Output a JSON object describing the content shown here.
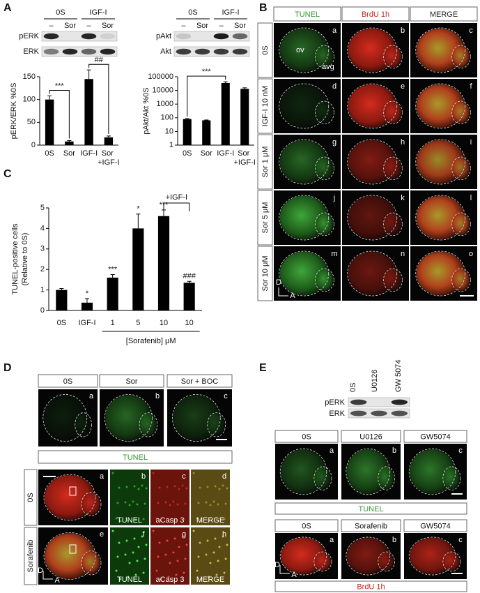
{
  "chart_data": [
    {
      "type": "bar",
      "ylabel": "pERK/ERK %0S",
      "categories": [
        "0S",
        "Sor",
        "IGF-I",
        "Sor +IGF-I"
      ],
      "series": [
        {
          "color": "#000000",
          "values": [
            100,
            8,
            145,
            17
          ],
          "errors": [
            8,
            2,
            20,
            3
          ]
        }
      ],
      "ylim": [
        0,
        150
      ],
      "yticks": [
        0,
        50,
        100,
        150
      ],
      "annotations": [
        "***",
        "##"
      ]
    },
    {
      "type": "bar",
      "ylabel": "pAkt/Akt %0S",
      "log": true,
      "categories": [
        "0S",
        "Sor",
        "IGF-I",
        "Sor +IGF-I"
      ],
      "series": [
        {
          "color": "#000000",
          "values": [
            80,
            65,
            35000,
            13000
          ],
          "errors": [
            8,
            4,
            8000,
            2500
          ]
        }
      ],
      "ylim": [
        1,
        100000
      ],
      "yticks": [
        1,
        10,
        100,
        1000,
        10000,
        100000
      ],
      "annotations": [
        "***"
      ]
    },
    {
      "type": "bar",
      "ylabel": [
        "TUNEL-positive cells",
        "(Relative to 0S)"
      ],
      "categories": [
        "0S",
        "IGF-I",
        "1",
        "5",
        "10",
        "10"
      ],
      "series": [
        {
          "color": "#000000",
          "values": [
            1.0,
            0.38,
            1.6,
            4.0,
            4.6,
            1.35
          ],
          "errors": [
            0.07,
            0.2,
            0.15,
            0.7,
            0.3,
            0.07
          ]
        }
      ],
      "ylim": [
        0,
        5
      ],
      "yticks": [
        0,
        1,
        2,
        3,
        4,
        5
      ],
      "bar_annotations": [
        null,
        "*",
        "***",
        "*",
        "***",
        "###"
      ],
      "bracket_label": "+IGF-I",
      "xlabel": "[Sorafenib] μM"
    }
  ],
  "figure": {
    "panel_a": {
      "label": "A",
      "blots": [
        {
          "groups": [
            "0S",
            "IGF-I"
          ],
          "lanes": [
            "–",
            "Sor",
            "–",
            "Sor"
          ],
          "rows": [
            "pERK",
            "ERK"
          ]
        },
        {
          "groups": [
            "0S",
            "IGF-I"
          ],
          "lanes": [
            "–",
            "Sor",
            "–",
            "Sor"
          ],
          "rows": [
            "pAkt",
            "Akt"
          ]
        }
      ]
    },
    "panel_b": {
      "label": "B",
      "columns": [
        "TUNEL",
        "BrdU 1h",
        "MERGE"
      ],
      "rows": [
        "0S",
        "IGF-I 10 nM",
        "Sor 1 μM",
        "Sor 5 μM",
        "Sor 10 μM"
      ],
      "letters": [
        "a",
        "b",
        "c",
        "d",
        "e",
        "f",
        "g",
        "h",
        "i",
        "j",
        "k",
        "l",
        "m",
        "n",
        "o"
      ],
      "structures": [
        "ov",
        "avg"
      ],
      "axes": [
        "D",
        "A"
      ]
    },
    "panel_c": {
      "label": "C"
    },
    "panel_d": {
      "label": "D",
      "columns": [
        "0S",
        "Sor",
        "Sor + BOC"
      ],
      "letters": [
        "a",
        "b",
        "c"
      ],
      "stain": "TUNEL",
      "rows": [
        "0S",
        "Sorafenib"
      ],
      "detail_letters": [
        "a",
        "b",
        "c",
        "d",
        "e",
        "f",
        "g",
        "h"
      ],
      "channels": [
        "TUNEL",
        "aCasp 3",
        "MERGE"
      ],
      "axes": [
        "D",
        "A"
      ]
    },
    "panel_e": {
      "label": "E",
      "blot": {
        "lanes": [
          "0S",
          "U0126",
          "GW 5074"
        ],
        "rows": [
          "pERK",
          "ERK"
        ]
      },
      "tunel_columns": [
        "0S",
        "U0126",
        "GW5074"
      ],
      "brdu_columns": [
        "0S",
        "Sorafenib",
        "GW5074"
      ],
      "letters": [
        "a",
        "b",
        "c"
      ],
      "tunel": "TUNEL",
      "brdu": "BrdU 1h",
      "axes": [
        "D",
        "A"
      ]
    }
  }
}
